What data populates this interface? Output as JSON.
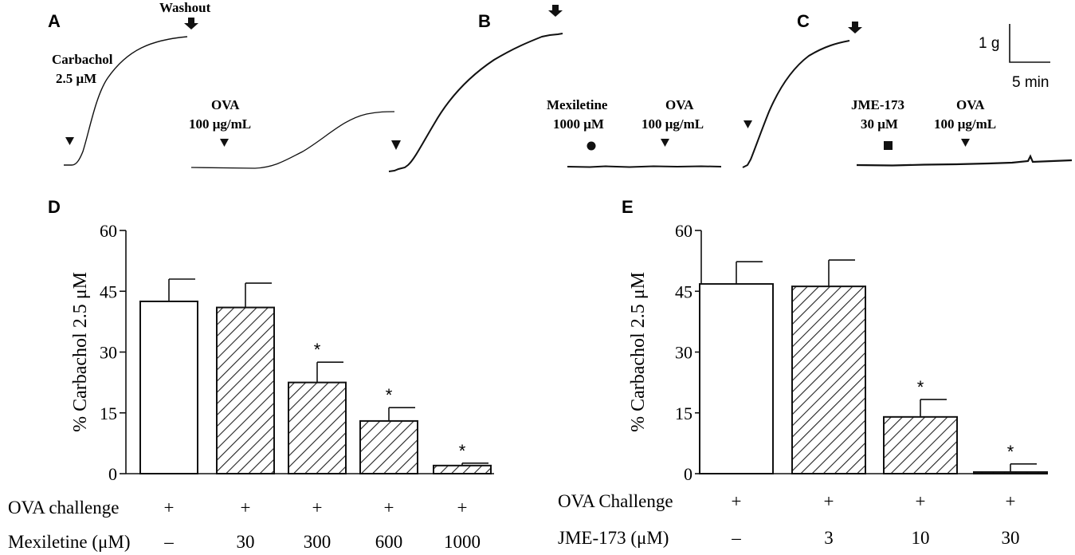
{
  "colors": {
    "ink": "#111111",
    "hatch": "#222222",
    "bar_open": "#ffffff"
  },
  "traces": {
    "A": {
      "panel_label": "A",
      "washout_label": "Washout",
      "carbachol_label_line1": "Carbachol",
      "carbachol_label_line2": "2.5 μM",
      "ova_label_line1": "OVA",
      "ova_label_line2": "100 μg/mL"
    },
    "B": {
      "panel_label": "B",
      "drug_label_line1": "Mexiletine",
      "drug_label_line2": "1000 μM",
      "ova_label_line1": "OVA",
      "ova_label_line2": "100 μg/mL"
    },
    "C": {
      "panel_label": "C",
      "drug_label_line1": "JME-173",
      "drug_label_line2": "30 μM",
      "ova_label_line1": "OVA",
      "ova_label_line2": "100 μg/mL"
    },
    "scale_bar": {
      "vertical": "1 g",
      "horizontal": "5 min"
    }
  },
  "chart_data": [
    {
      "panel": "D",
      "type": "bar",
      "ylabel": "% Carbachol 2.5 μM",
      "ylim": [
        0,
        60
      ],
      "yticks": [
        "0",
        "15",
        "30",
        "45",
        "60"
      ],
      "categories": [
        "−/+",
        "30",
        "300",
        "600",
        "1000"
      ],
      "values": [
        42.5,
        41,
        22.5,
        13,
        2
      ],
      "errors": [
        5.5,
        6,
        5,
        3.3,
        0.6
      ],
      "fills": [
        "open",
        "hatch",
        "hatch",
        "hatch",
        "hatch"
      ],
      "significance": [
        "",
        "",
        "*",
        "*",
        "*"
      ],
      "row1_label": "OVA challenge",
      "row1_values": [
        "+",
        "+",
        "+",
        "+",
        "+"
      ],
      "row2_label": "Mexiletine (μM)",
      "row2_values": [
        "–",
        "30",
        "300",
        "600",
        "1000"
      ]
    },
    {
      "panel": "E",
      "type": "bar",
      "ylabel": "% Carbachol 2.5 μM",
      "ylim": [
        0,
        60
      ],
      "yticks": [
        "0",
        "15",
        "30",
        "45",
        "60"
      ],
      "categories": [
        "−/+",
        "3",
        "10",
        "30"
      ],
      "values": [
        46.8,
        46.2,
        14,
        0.4
      ],
      "errors": [
        5.5,
        6.5,
        4.3,
        2
      ],
      "fills": [
        "open",
        "hatch",
        "hatch",
        "hatch"
      ],
      "significance": [
        "",
        "",
        "*",
        "*"
      ],
      "row1_label": "OVA Challenge",
      "row1_values": [
        "+",
        "+",
        "+",
        "+"
      ],
      "row2_label": "JME-173 (μM)",
      "row2_values": [
        "–",
        "3",
        "10",
        "30"
      ]
    }
  ]
}
